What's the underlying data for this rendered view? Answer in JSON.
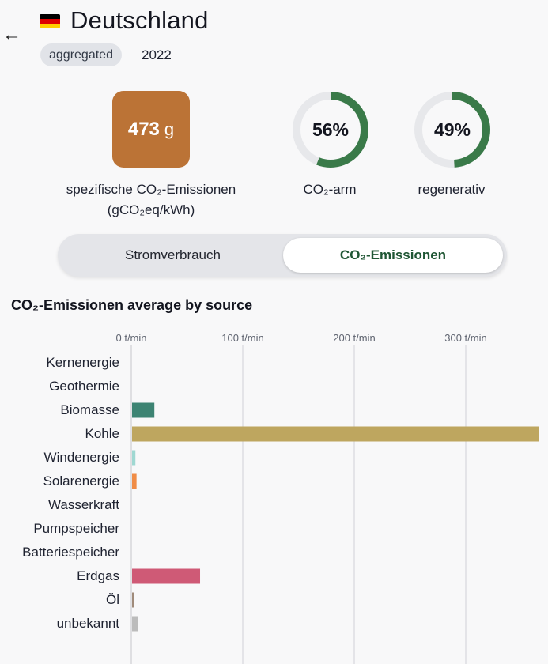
{
  "header": {
    "back_icon": "arrow-left-icon",
    "flag_icon": "germany-flag-icon",
    "flag_colors": [
      "#000000",
      "#dd0000",
      "#ffce00"
    ],
    "title": "Deutschland",
    "badge": "aggregated",
    "year": "2022"
  },
  "summary": {
    "co2_value": "473",
    "co2_unit": "g",
    "co2_color": "#bb7336",
    "co2_label_line1": "spezifische CO₂-Emissionen",
    "co2_label_line2": "(gCO₂eq/kWh)",
    "gauges": [
      {
        "value": 56,
        "label": "CO₂-arm",
        "text": "56%",
        "color": "#3a7a49"
      },
      {
        "value": 49,
        "label": "regenerativ",
        "text": "49%",
        "color": "#3a7a49"
      }
    ]
  },
  "toggle": {
    "options": [
      "Stromverbrauch",
      "CO₂-Emissionen"
    ],
    "selected": "CO₂-Emissionen"
  },
  "chart_data": {
    "type": "bar",
    "orientation": "horizontal",
    "title": "CO₂-Emissionen average by source",
    "xlabel": "t/min",
    "xlim": [
      0,
      365
    ],
    "x_ticks": [
      0,
      100,
      200,
      300
    ],
    "x_tick_labels": [
      "0 t/min",
      "100 t/min",
      "200 t/min",
      "300 t/min"
    ],
    "categories": [
      "Kernenergie",
      "Geothermie",
      "Biomasse",
      "Kohle",
      "Windenergie",
      "Solarenergie",
      "Wasserkraft",
      "Pumpspeicher",
      "Batteriespeicher",
      "Erdgas",
      "Öl",
      "unbekannt"
    ],
    "values": [
      0,
      0,
      20,
      365,
      3,
      4,
      0,
      0,
      0,
      61,
      2,
      5
    ],
    "colors": [
      "#888888",
      "#888888",
      "#3d8473",
      "#bea65f",
      "#9fd8d2",
      "#f08c46",
      "#4a7fc1",
      "#4a7fc1",
      "#4a7fc1",
      "#cf5a76",
      "#a08b7a",
      "#bcbcbc"
    ]
  }
}
